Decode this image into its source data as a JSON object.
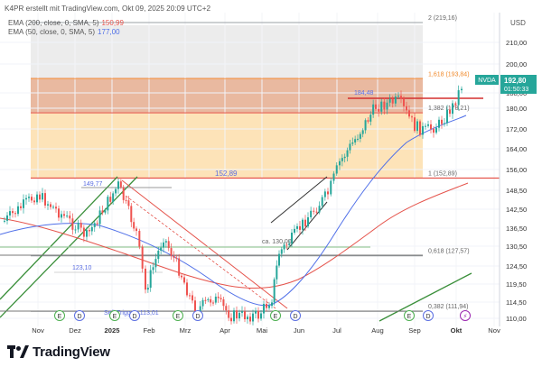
{
  "header": {
    "created_line": "K4PR erstellt mit TradingView.com, Okt 09, 2025 20:09 UTC+2"
  },
  "legend": [
    {
      "label": "EMA (200, close, 0, SMA, 5)",
      "value": "150,99",
      "color": "#e5534b"
    },
    {
      "label": "EMA (50, close, 0, SMA, 5)",
      "value": "177,00",
      "color": "#4f6fe8"
    }
  ],
  "footer": {
    "brand": "TradingView"
  },
  "chart_data": {
    "type": "candlestick",
    "symbol": "NVDA",
    "currency": "USD",
    "last_price": "192,80",
    "countdown": "01:50:33",
    "y_axis": {
      "ylim": [
        109,
        226
      ],
      "ticks": [
        "210,00",
        "200,00",
        "188,00",
        "180,00",
        "172,00",
        "164,00",
        "156,00",
        "148,50",
        "142,50",
        "136,50",
        "130,50",
        "124,50",
        "119,50",
        "114,50",
        "110,00"
      ],
      "tick_values": [
        210,
        200,
        188,
        180,
        172,
        164,
        156,
        148.5,
        142.5,
        136.5,
        130.5,
        124.5,
        119.5,
        114.5,
        110
      ]
    },
    "x_axis": {
      "labels": [
        "Nov",
        "Dez",
        "2025",
        "Feb",
        "Mrz",
        "Apr",
        "Mai",
        "Jun",
        "Jul",
        "Aug",
        "Sep",
        "Okt",
        "Nov"
      ],
      "bold_labels": [
        "2025",
        "Okt"
      ]
    },
    "fibonacci": [
      {
        "label": "2 (219,16)",
        "value": 219.16
      },
      {
        "label": "1,618 (193,84)",
        "value": 193.84
      },
      {
        "label": "1,382 (178,21)",
        "value": 178.21
      },
      {
        "label": "1 (152,89)",
        "value": 152.89
      },
      {
        "label": "0,618 (127,57)",
        "value": 127.57
      },
      {
        "label": "0,382 (111,94)",
        "value": 111.94
      }
    ],
    "annotations": [
      {
        "text": "184,48",
        "value": 184.48
      },
      {
        "text": "152,89",
        "value": 152.89
      },
      {
        "text": "149,77",
        "value": 149.77
      },
      {
        "text": "ca. 130,00",
        "value": 130.0
      },
      {
        "text": "123,10",
        "value": 123.1
      },
      {
        "text": "Sell-Trigger: 113,01",
        "value": 113.01
      }
    ],
    "event_markers": [
      "E",
      "D",
      "E",
      "D",
      "E",
      "D",
      "E",
      "D",
      "E",
      "D"
    ],
    "series": [
      {
        "name": "EMA (200, close, 0, SMA, 5)",
        "color": "#e5534b"
      },
      {
        "name": "EMA (50, close, 0, SMA, 5)",
        "color": "#4f6fe8"
      }
    ]
  }
}
